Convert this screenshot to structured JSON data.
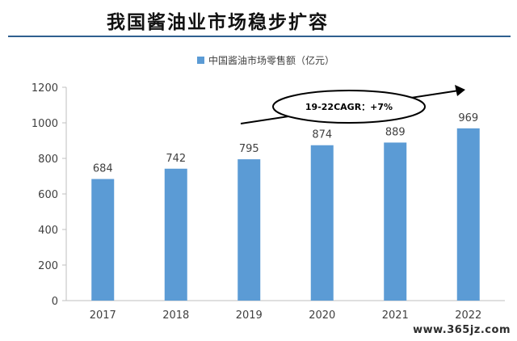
{
  "header": {
    "title": "我国酱油业市场稳步扩容"
  },
  "colors": {
    "bar": "#5b9bd5",
    "axis": "#bfbfbf",
    "text": "#404040",
    "rule": "#2f5f8f"
  },
  "watermark": "www.365jz.com",
  "chart_data": {
    "type": "bar",
    "categories": [
      "2017",
      "2018",
      "2019",
      "2020",
      "2021",
      "2022"
    ],
    "series": [
      {
        "name": "中国酱油市场零售额（亿元）",
        "values": [
          684,
          742,
          795,
          874,
          889,
          969
        ]
      }
    ],
    "ylim": [
      0,
      1200
    ],
    "yticks": [
      0,
      200,
      400,
      600,
      800,
      1000,
      1200
    ],
    "grid": false,
    "legend_position": "top",
    "annotation": "19-22CAGR：+7%"
  }
}
